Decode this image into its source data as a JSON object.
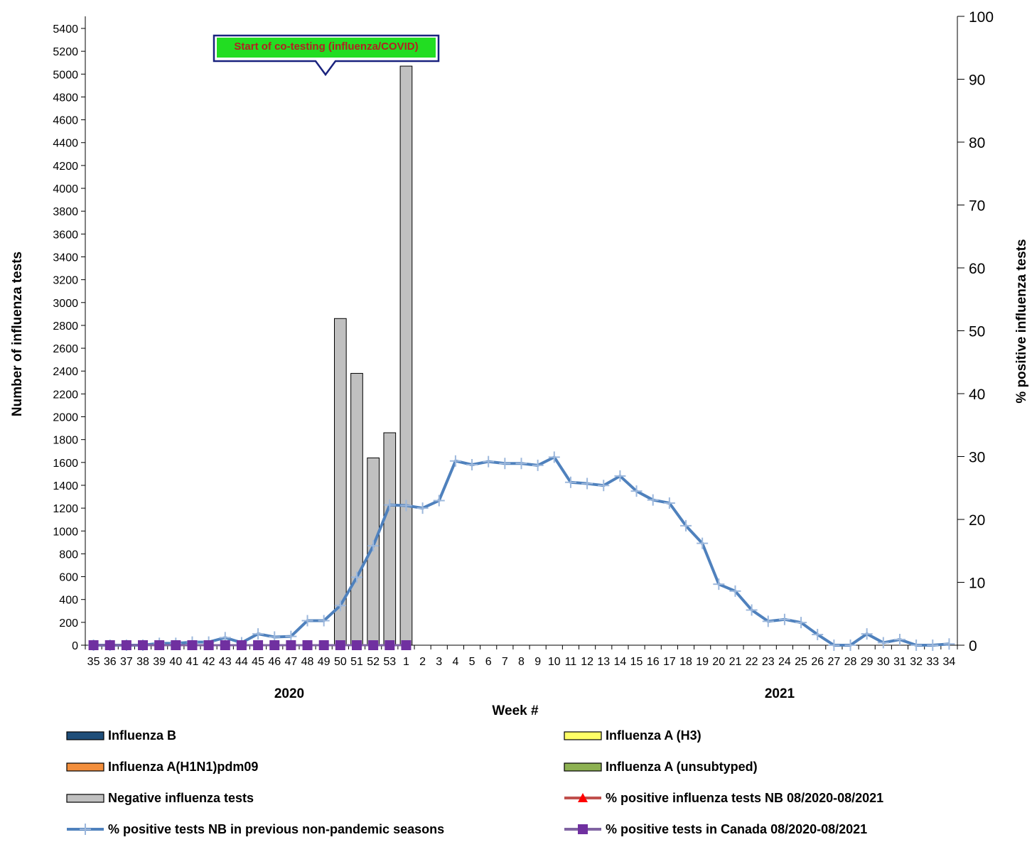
{
  "chart_data": {
    "type": "bar",
    "title": "",
    "xlabel": "Week #",
    "ylabel_left": "Number of influenza tests",
    "ylabel_right": "% positive influenza tests",
    "ylim_left": [
      0,
      5400
    ],
    "ylim_right": [
      0,
      100
    ],
    "left_ticks": [
      0,
      200,
      400,
      600,
      800,
      1000,
      1200,
      1400,
      1600,
      1800,
      2000,
      2200,
      2400,
      2600,
      2800,
      3000,
      3200,
      3400,
      3600,
      3800,
      4000,
      4200,
      4400,
      4600,
      4800,
      5000,
      5200,
      5400
    ],
    "right_ticks": [
      0,
      10,
      20,
      30,
      40,
      50,
      60,
      70,
      80,
      90,
      100
    ],
    "categories": [
      "35",
      "36",
      "37",
      "38",
      "39",
      "40",
      "41",
      "42",
      "43",
      "44",
      "45",
      "46",
      "47",
      "48",
      "49",
      "50",
      "51",
      "52",
      "53",
      "1",
      "2",
      "3",
      "4",
      "5",
      "6",
      "7",
      "8",
      "9",
      "10",
      "11",
      "12",
      "13",
      "14",
      "15",
      "16",
      "17",
      "18",
      "19",
      "20",
      "21",
      "22",
      "23",
      "24",
      "25",
      "26",
      "27",
      "28",
      "29",
      "30",
      "31",
      "32",
      "33",
      "34"
    ],
    "year_labels": [
      "2020",
      "2021"
    ],
    "annotation": "Start of co-testing (influenza/COVID)",
    "bar_series": [
      {
        "name": "Negative influenza tests",
        "color": "#c0c0c0",
        "values": [
          0,
          0,
          0,
          0,
          0,
          0,
          0,
          0,
          0,
          0,
          0,
          0,
          0,
          0,
          0,
          2860,
          2380,
          1640,
          1860,
          5070,
          0,
          0,
          0,
          0,
          0,
          0,
          0,
          0,
          0,
          0,
          0,
          0,
          0,
          0,
          0,
          0,
          0,
          0,
          0,
          0,
          0,
          0,
          0,
          0,
          0,
          0,
          0,
          0,
          0,
          0,
          0,
          0,
          0
        ]
      },
      {
        "name": "Influenza B",
        "color": "#1f4e79",
        "values": []
      },
      {
        "name": "Influenza A(H1N1)pdm09",
        "color": "#f28e3c",
        "values": []
      },
      {
        "name": "Influenza A (H3)",
        "color": "#ffff66",
        "values": []
      },
      {
        "name": "Influenza A (unsubtyped)",
        "color": "#8db152",
        "values": []
      }
    ],
    "line_series": [
      {
        "name": "% positive tests NB in previous non-pandemic seasons",
        "color": "#4f81bd",
        "marker": "plus",
        "axis": "right",
        "values": [
          0,
          0,
          0,
          0,
          0.3,
          0.3,
          0.5,
          0.5,
          1.2,
          0.4,
          1.8,
          1.3,
          1.4,
          3.9,
          3.9,
          6.3,
          10.8,
          15.8,
          22.3,
          22.2,
          21.8,
          23,
          29.3,
          28.7,
          29.2,
          28.9,
          28.9,
          28.6,
          29.9,
          25.9,
          25.7,
          25.4,
          26.9,
          24.5,
          23.1,
          22.6,
          19,
          16.2,
          9.7,
          8.6,
          5.6,
          3.8,
          4.1,
          3.6,
          1.7,
          0,
          0,
          1.8,
          0.4,
          0.9,
          0,
          0,
          0.2
        ]
      },
      {
        "name": "% positive influenza tests NB 08/2020-08/2021",
        "color": "#c0504d",
        "marker": "triangle",
        "axis": "right",
        "values": [
          0,
          0,
          0,
          0,
          0,
          0,
          0,
          0,
          0,
          0,
          0,
          0,
          0,
          0,
          0,
          0,
          0,
          0,
          0,
          0,
          null,
          null,
          null,
          null,
          null,
          null,
          null,
          null,
          null,
          null,
          null,
          null,
          null,
          null,
          null,
          null,
          null,
          null,
          null,
          null,
          null,
          null,
          null,
          null,
          null,
          null,
          null,
          null,
          null,
          null,
          null,
          null,
          null
        ]
      },
      {
        "name": "% positive tests  in Canada 08/2020-08/2021",
        "color": "#8064a2",
        "marker": "square",
        "axis": "right",
        "values": [
          0,
          0,
          0,
          0,
          0,
          0,
          0,
          0,
          0,
          0,
          0,
          0,
          0,
          0,
          0,
          0,
          0,
          0,
          0,
          0,
          null,
          null,
          null,
          null,
          null,
          null,
          null,
          null,
          null,
          null,
          null,
          null,
          null,
          null,
          null,
          null,
          null,
          null,
          null,
          null,
          null,
          null,
          null,
          null,
          null,
          null,
          null,
          null,
          null,
          null,
          null,
          null,
          null
        ]
      }
    ],
    "legend": [
      {
        "label": "Influenza B",
        "kind": "box",
        "fill": "#1f4e79"
      },
      {
        "label": "Influenza A (H3)",
        "kind": "box",
        "fill": "#ffff66"
      },
      {
        "label": "Influenza A(H1N1)pdm09",
        "kind": "box",
        "fill": "#f28e3c"
      },
      {
        "label": "Influenza A (unsubtyped)",
        "kind": "box",
        "fill": "#8db152"
      },
      {
        "label": "Negative influenza tests",
        "kind": "box",
        "fill": "#c0c0c0"
      },
      {
        "label": "% positive influenza tests NB 08/2020-08/2021",
        "kind": "line",
        "stroke": "#c0504d",
        "marker": "triangle",
        "markerColor": "#ff0000"
      },
      {
        "label": "% positive tests NB in previous non-pandemic seasons",
        "kind": "line",
        "stroke": "#4f81bd",
        "marker": "plus",
        "markerColor": "#9db8dc"
      },
      {
        "label": "% positive tests  in Canada 08/2020-08/2021",
        "kind": "line",
        "stroke": "#8064a2",
        "marker": "square",
        "markerColor": "#7030a0"
      }
    ],
    "legend_position": "bottom",
    "grid": false
  }
}
